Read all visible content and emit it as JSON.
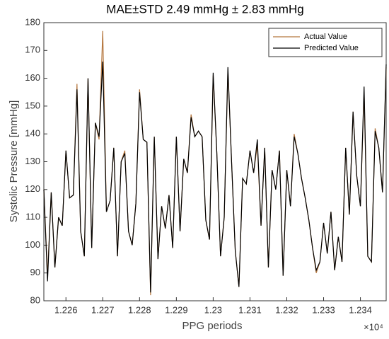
{
  "chart_data": {
    "type": "line",
    "title": "MAE±STD 2.49 mmHg ± 2.83 mmHg",
    "xlabel": "PPG periods",
    "ylabel": "Systolic Pressure [mmHg]",
    "x_multiplier": "×10⁴",
    "x": [
      12254,
      12255,
      12256,
      12257,
      12258,
      12259,
      12260,
      12261,
      12262,
      12263,
      12264,
      12265,
      12266,
      12267,
      12268,
      12269,
      12270,
      12271,
      12272,
      12273,
      12274,
      12275,
      12276,
      12277,
      12278,
      12279,
      12280,
      12281,
      12282,
      12283,
      12284,
      12285,
      12286,
      12287,
      12288,
      12289,
      12290,
      12291,
      12292,
      12293,
      12294,
      12295,
      12296,
      12297,
      12298,
      12299,
      12300,
      12301,
      12302,
      12303,
      12304,
      12305,
      12306,
      12307,
      12308,
      12309,
      12310,
      12311,
      12312,
      12313,
      12314,
      12315,
      12316,
      12317,
      12318,
      12319,
      12320,
      12321,
      12322,
      12323,
      12324,
      12325,
      12326,
      12327,
      12328,
      12329,
      12330,
      12331,
      12332,
      12333,
      12334,
      12335,
      12336,
      12337,
      12338,
      12339,
      12340,
      12341,
      12342,
      12343,
      12344,
      12345,
      12346,
      12347
    ],
    "series": [
      {
        "name": "Actual Value",
        "color": "#b5773f",
        "values": [
          120,
          89,
          119,
          92,
          110,
          107,
          134,
          117,
          118,
          158,
          105,
          96,
          160,
          99,
          144,
          138,
          177,
          112,
          116,
          135,
          96,
          130,
          134,
          105,
          100,
          115,
          156,
          138,
          137,
          82,
          139,
          95,
          114,
          106,
          118,
          99,
          139,
          105,
          131,
          126,
          147,
          139,
          141,
          139,
          109,
          102,
          161,
          133,
          96,
          110,
          163,
          130,
          98,
          85,
          124,
          122,
          134,
          126,
          136,
          107,
          135,
          92,
          127,
          120,
          134,
          89,
          127,
          114,
          140,
          133,
          124,
          117,
          109,
          99,
          90,
          94,
          108,
          97,
          112,
          91,
          103,
          94,
          135,
          111,
          148,
          125,
          114,
          155,
          96,
          94,
          142,
          135,
          119,
          164
        ]
      },
      {
        "name": "Predicted Value",
        "color": "#000000",
        "values": [
          120,
          87,
          119,
          92,
          110,
          107,
          134,
          117,
          118,
          156,
          105,
          96,
          160,
          99,
          144,
          139,
          166,
          112,
          116,
          135,
          96,
          130,
          133,
          105,
          100,
          115,
          155,
          138,
          137,
          83,
          139,
          95,
          114,
          106,
          118,
          99,
          139,
          105,
          131,
          126,
          146,
          139,
          141,
          139,
          109,
          102,
          162,
          133,
          96,
          110,
          164,
          130,
          98,
          85,
          124,
          122,
          134,
          126,
          138,
          107,
          135,
          92,
          127,
          120,
          134,
          89,
          127,
          114,
          139,
          133,
          124,
          117,
          109,
          99,
          91,
          94,
          108,
          97,
          112,
          91,
          103,
          94,
          135,
          111,
          148,
          125,
          114,
          157,
          96,
          94,
          141,
          135,
          119,
          165
        ]
      }
    ],
    "xlim": [
      12254,
      12347
    ],
    "xticks": [
      {
        "value": 12260,
        "label": "1.226"
      },
      {
        "value": 12270,
        "label": "1.227"
      },
      {
        "value": 12280,
        "label": "1.228"
      },
      {
        "value": 12290,
        "label": "1.229"
      },
      {
        "value": 12300,
        "label": "1.23"
      },
      {
        "value": 12310,
        "label": "1.231"
      },
      {
        "value": 12320,
        "label": "1.232"
      },
      {
        "value": 12330,
        "label": "1.233"
      },
      {
        "value": 12340,
        "label": "1.234"
      }
    ],
    "ylim": [
      80,
      180
    ],
    "yticks": [
      80,
      90,
      100,
      110,
      120,
      130,
      140,
      150,
      160,
      170,
      180
    ],
    "grid": false,
    "legend": "upper right"
  }
}
